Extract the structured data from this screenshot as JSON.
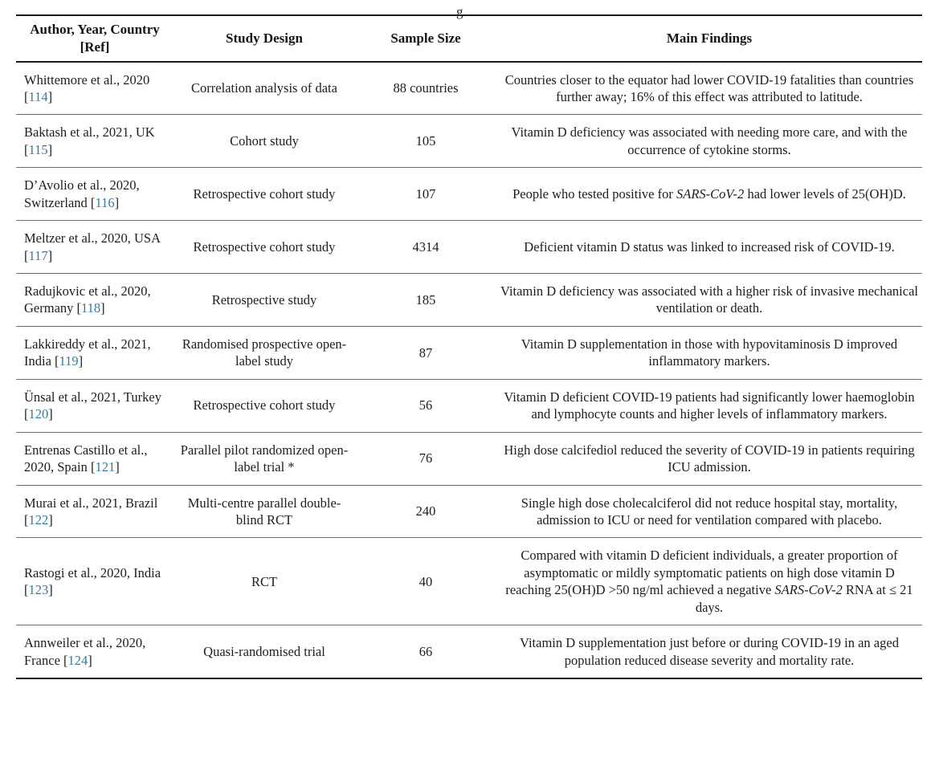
{
  "page": {
    "caption_fragment": "g"
  },
  "table": {
    "headers": [
      "Author, Year, Country [Ref]",
      "Study Design",
      "Sample Size",
      "Main Findings"
    ],
    "ref_format": {
      "prefix": " [",
      "suffix": "]"
    },
    "link_color": "#337ca0",
    "rows": [
      {
        "author": "Whittemore et al., 2020",
        "ref": "114",
        "design": "Correlation analysis of data",
        "sample": "88 countries",
        "findings": [
          {
            "text": "Countries closer to the equator had lower COVID-19 fatalities than countries further away; 16% of this effect was attributed to latitude."
          }
        ]
      },
      {
        "author": "Baktash et al., 2021, UK",
        "ref": "115",
        "design": "Cohort study",
        "sample": "105",
        "findings": [
          {
            "text": "Vitamin D deficiency was associated with needing more care, and with the occurrence of cytokine storms."
          }
        ]
      },
      {
        "author": "D’Avolio et al., 2020, Switzerland",
        "ref": "116",
        "design": "Retrospective cohort study",
        "sample": "107",
        "findings": [
          {
            "text": "People who tested positive for "
          },
          {
            "text": "SARS-CoV-2",
            "italic": true
          },
          {
            "text": " had lower levels of 25(OH)D."
          }
        ]
      },
      {
        "author": "Meltzer et al., 2020, USA",
        "ref": "117",
        "design": "Retrospective cohort study",
        "sample": "4314",
        "findings": [
          {
            "text": "Deficient vitamin D status was linked to increased risk of COVID-19."
          }
        ]
      },
      {
        "author": "Radujkovic et al., 2020, Germany",
        "ref": "118",
        "design": "Retrospective study",
        "sample": "185",
        "findings": [
          {
            "text": "Vitamin D deficiency was associated with a higher risk of invasive mechanical ventilation or death."
          }
        ]
      },
      {
        "author": "Lakkireddy et al., 2021, India",
        "ref": "119",
        "design": "Randomised prospective open-label study",
        "sample": "87",
        "findings": [
          {
            "text": "Vitamin D supplementation in those with hypovitaminosis D improved inflammatory markers."
          }
        ]
      },
      {
        "author": "Ünsal et al., 2021, Turkey",
        "ref": "120",
        "design": "Retrospective cohort study",
        "sample": "56",
        "findings": [
          {
            "text": "Vitamin D deficient COVID-19 patients had significantly lower haemoglobin and lymphocyte counts and higher levels of inflammatory markers."
          }
        ]
      },
      {
        "author": "Entrenas Castillo et al., 2020, Spain",
        "ref": "121",
        "design": "Parallel pilot randomized open-label trial *",
        "sample": "76",
        "findings": [
          {
            "text": "High dose calcifediol reduced the severity of COVID-19 in patients requiring ICU admission."
          }
        ]
      },
      {
        "author": "Murai et al., 2021, Brazil",
        "ref": "122",
        "design": "Multi-centre parallel double-blind RCT",
        "sample": "240",
        "findings": [
          {
            "text": "Single high dose cholecalciferol did not reduce hospital stay, mortality, admission to ICU or need for ventilation compared with placebo."
          }
        ]
      },
      {
        "author": "Rastogi et al., 2020, India",
        "ref": "123",
        "design": "RCT",
        "sample": "40",
        "findings": [
          {
            "text": "Compared with vitamin D deficient individuals, a greater proportion of asymptomatic or mildly symptomatic patients on high dose vitamin D reaching 25(OH)D >50 ng/ml achieved a negative "
          },
          {
            "text": "SARS-CoV-2",
            "italic": true
          },
          {
            "text": " RNA at ≤ 21 days."
          }
        ]
      },
      {
        "author": "Annweiler et al., 2020, France",
        "ref": "124",
        "design": "Quasi-randomised trial",
        "sample": "66",
        "findings": [
          {
            "text": "Vitamin D supplementation just before or during COVID-19 in an aged population reduced disease severity and mortality rate."
          }
        ]
      }
    ]
  }
}
